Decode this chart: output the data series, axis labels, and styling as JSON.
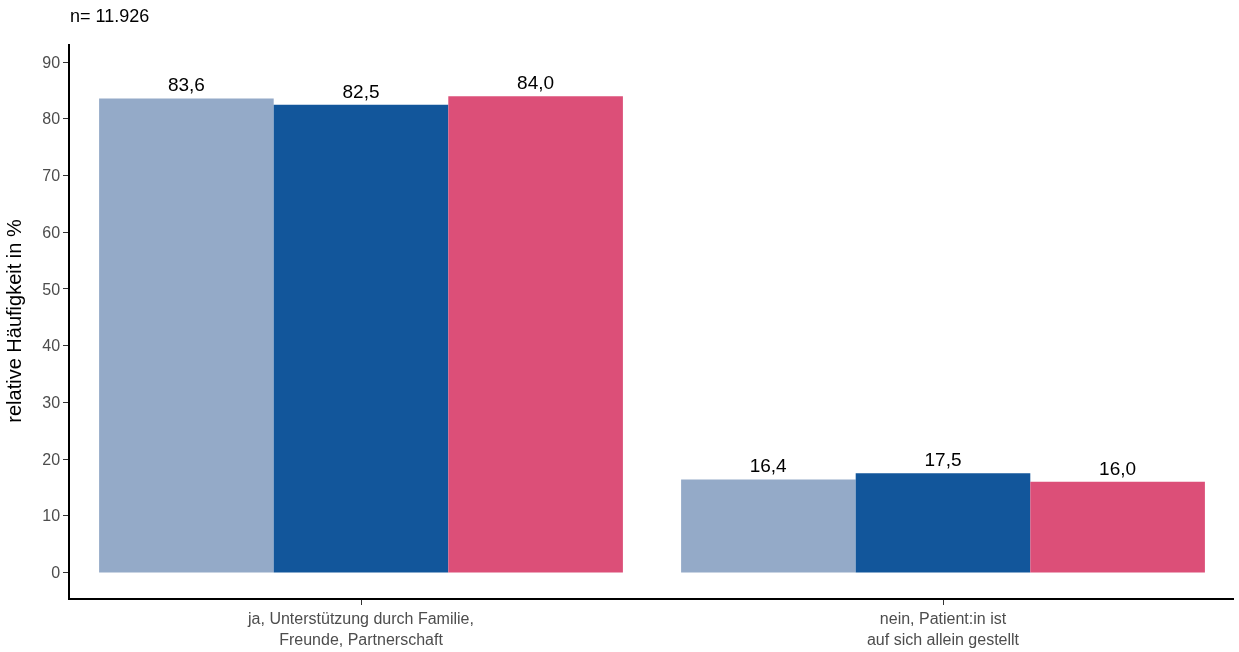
{
  "chart_data": {
    "type": "bar",
    "title": "n= 11.926",
    "ylabel": "relative Häufigkeit in %",
    "categories": [
      "ja, Unterstützung durch Familie,\nFreunde, Partnerschaft",
      "nein, Patient:in ist\nauf sich allein gestellt"
    ],
    "series": [
      {
        "color": "#94aac8",
        "values": [
          83.6,
          16.4
        ],
        "value_labels": [
          "83,6",
          "16,4"
        ]
      },
      {
        "color": "#12569b",
        "values": [
          82.5,
          17.5
        ],
        "value_labels": [
          "82,5",
          "17,5"
        ]
      },
      {
        "color": "#dc4f78",
        "values": [
          84.0,
          16.0
        ],
        "value_labels": [
          "84,0",
          "16,0"
        ]
      }
    ],
    "ylim": [
      -4.5,
      93.2
    ],
    "yticks": [
      0,
      10,
      20,
      30,
      40,
      50,
      60,
      70,
      80,
      90
    ],
    "legend": false
  }
}
